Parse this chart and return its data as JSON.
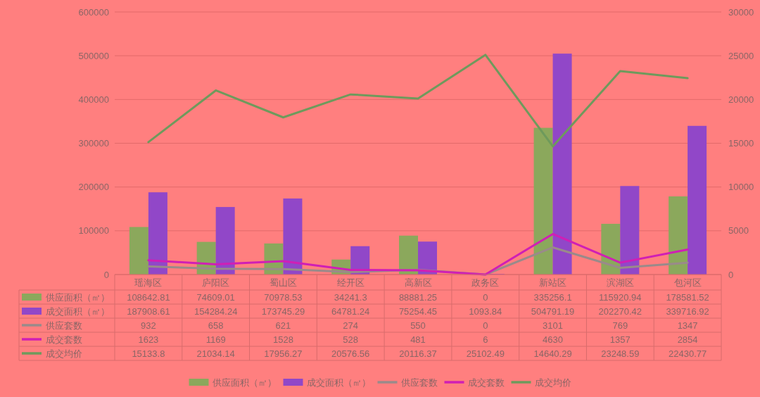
{
  "chart_data": {
    "type": "bar",
    "categories": [
      "瑶海区",
      "庐阳区",
      "蜀山区",
      "经开区",
      "高新区",
      "政务区",
      "新站区",
      "滨湖区",
      "包河区"
    ],
    "series": [
      {
        "name": "供应面积（㎡）",
        "color": "#8ba85c",
        "values": [
          108642.81,
          74609.01,
          70978.53,
          34241.3,
          88881.25,
          0,
          335256.1,
          115920.94,
          178581.52
        ]
      },
      {
        "name": "成交面积（㎡）",
        "color": "#9147c8",
        "values": [
          187908.61,
          154284.24,
          173745.29,
          64781.24,
          75254.45,
          1093.84,
          504791.19,
          202270.42,
          339716.92
        ]
      },
      {
        "name": "供应套数",
        "type": "line",
        "axis": "y2",
        "color": "#9a8a8a",
        "values": [
          932,
          658,
          621,
          274,
          550,
          0,
          3101,
          769,
          1347
        ]
      },
      {
        "name": "成交套数",
        "type": "line",
        "axis": "y2",
        "color": "#d01fb5",
        "values": [
          1623,
          1169,
          1528,
          528,
          481,
          6,
          4630,
          1357,
          2854
        ]
      },
      {
        "name": "成交均价",
        "type": "line",
        "axis": "y2",
        "color": "#6e9a5c",
        "values": [
          15133.8,
          21034.14,
          17956.27,
          20576.56,
          20116.37,
          25102.49,
          14640.29,
          23248.59,
          22430.77
        ]
      }
    ],
    "ylim": [
      0,
      600000
    ],
    "yticks": [
      0,
      100000,
      200000,
      300000,
      400000,
      500000,
      600000
    ],
    "y2lim": [
      0,
      30000
    ],
    "y2ticks": [
      0,
      5000,
      10000,
      15000,
      20000,
      25000,
      30000
    ],
    "grid": "y",
    "legend": "bottom",
    "data_labels": true
  }
}
